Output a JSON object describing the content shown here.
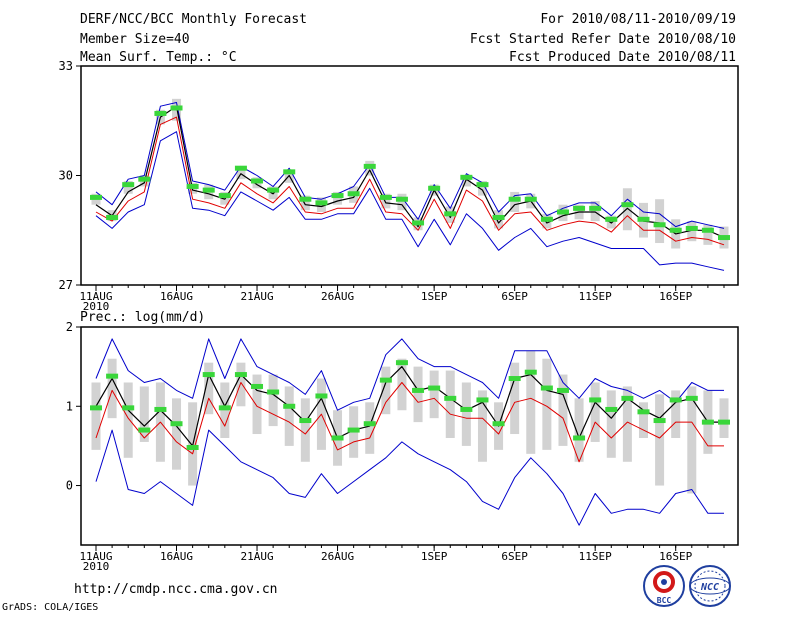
{
  "header": {
    "title": "DERF/NCC/BCC Monthly Forecast",
    "member_size": "Member Size=40",
    "variable": "Mean Surf. Temp.: °C",
    "period": "For 2010/08/11-2010/09/19",
    "started": "Fcst Started Refer Date 2010/08/10",
    "produced": "Fcst Produced Date 2010/08/11"
  },
  "footer": {
    "url": "http://cmdp.ncc.cma.gov.cn",
    "grads": "GrADS: COLA/IGES",
    "logo_left": "BCC",
    "logo_right": "NCC"
  },
  "colors": {
    "envelope": "#0000cc",
    "lower_band": "#e00000",
    "mean": "#000000",
    "median": "#39d63a",
    "box": "#d2d2d2"
  },
  "chart_data": [
    {
      "type": "box-whisker-line",
      "title": "Mean Surf. Temp.: °C",
      "ylim": [
        27,
        33
      ],
      "yticks": [
        27,
        30,
        33
      ],
      "xtick_labels": [
        "11AUG",
        "16AUG",
        "21AUG",
        "26AUG",
        "1SEP",
        "6SEP",
        "11SEP",
        "16SEP"
      ],
      "xtick_days": [
        0,
        5,
        10,
        15,
        21,
        26,
        31,
        36
      ],
      "year_label": "2010",
      "days": 40,
      "series": {
        "max": [
          29.55,
          29.2,
          29.9,
          30.0,
          31.9,
          32.0,
          29.85,
          29.75,
          29.6,
          30.25,
          30.0,
          29.7,
          30.2,
          29.4,
          29.35,
          29.5,
          29.7,
          30.3,
          29.4,
          29.4,
          28.8,
          29.75,
          29.1,
          30.05,
          29.8,
          29.0,
          29.45,
          29.5,
          28.9,
          29.1,
          29.25,
          29.25,
          28.9,
          29.35,
          29.0,
          28.95,
          28.6,
          28.75,
          28.65,
          28.55
        ],
        "mean": [
          29.2,
          28.9,
          29.55,
          29.8,
          31.6,
          31.9,
          29.6,
          29.5,
          29.35,
          30.05,
          29.75,
          29.5,
          30.0,
          29.2,
          29.15,
          29.3,
          29.4,
          30.15,
          29.25,
          29.2,
          28.6,
          29.6,
          28.85,
          29.9,
          29.6,
          28.7,
          29.2,
          29.3,
          28.7,
          28.9,
          29.0,
          29.0,
          28.7,
          29.1,
          28.75,
          28.7,
          28.4,
          28.5,
          28.5,
          28.3
        ],
        "lower": [
          29.0,
          28.75,
          29.3,
          29.55,
          31.4,
          31.6,
          29.35,
          29.25,
          29.1,
          29.8,
          29.5,
          29.25,
          29.7,
          29.0,
          28.95,
          29.1,
          29.1,
          29.9,
          29.0,
          28.95,
          28.5,
          29.35,
          28.55,
          29.6,
          29.3,
          28.5,
          28.95,
          29.0,
          28.5,
          28.65,
          28.75,
          28.7,
          28.45,
          28.9,
          28.5,
          28.5,
          28.2,
          28.3,
          28.25,
          28.1
        ],
        "min": [
          28.9,
          28.55,
          29.0,
          29.2,
          30.95,
          31.2,
          29.1,
          29.05,
          28.9,
          29.55,
          29.3,
          29.05,
          29.4,
          28.8,
          28.8,
          28.95,
          28.95,
          29.65,
          28.8,
          28.8,
          28.05,
          28.8,
          28.1,
          28.95,
          28.55,
          27.95,
          28.3,
          28.55,
          28.05,
          28.2,
          28.3,
          28.15,
          28.0,
          28.0,
          28.0,
          27.55,
          27.6,
          27.6,
          27.5,
          27.4
        ],
        "median": [
          29.4,
          28.85,
          29.75,
          29.9,
          31.7,
          31.85,
          29.7,
          29.6,
          29.45,
          30.2,
          29.85,
          29.6,
          30.1,
          29.35,
          29.25,
          29.45,
          29.5,
          30.25,
          29.4,
          29.35,
          28.7,
          29.65,
          28.95,
          29.95,
          29.75,
          28.85,
          29.35,
          29.35,
          28.8,
          29.0,
          29.1,
          29.1,
          28.8,
          29.2,
          28.8,
          28.65,
          28.5,
          28.55,
          28.5,
          28.3
        ],
        "box_high": [
          29.5,
          29.05,
          29.85,
          30.0,
          31.8,
          32.1,
          29.8,
          29.75,
          29.55,
          30.25,
          29.95,
          29.7,
          30.15,
          29.45,
          29.4,
          29.55,
          29.7,
          30.4,
          29.5,
          29.5,
          28.85,
          29.75,
          29.15,
          30.0,
          29.85,
          29.05,
          29.55,
          29.5,
          28.95,
          29.2,
          29.2,
          29.3,
          28.9,
          29.65,
          29.25,
          29.35,
          28.8,
          28.75,
          28.65,
          28.6
        ],
        "box_low": [
          29.2,
          28.75,
          29.5,
          29.7,
          31.4,
          31.5,
          29.5,
          29.35,
          29.2,
          29.9,
          29.65,
          29.35,
          29.8,
          29.05,
          29.0,
          29.2,
          29.25,
          30.0,
          29.1,
          29.05,
          28.5,
          29.45,
          28.7,
          29.7,
          29.45,
          28.55,
          29.0,
          29.1,
          28.55,
          28.75,
          28.8,
          28.75,
          28.55,
          28.5,
          28.3,
          28.15,
          28.0,
          28.2,
          28.1,
          28.0
        ]
      }
    },
    {
      "type": "box-whisker-line",
      "title": "Prec.: log(mm/d)",
      "ylim": [
        -0.75,
        2.0
      ],
      "yticks": [
        0,
        1,
        2
      ],
      "xtick_labels": [
        "11AUG",
        "16AUG",
        "21AUG",
        "26AUG",
        "1SEP",
        "6SEP",
        "11SEP",
        "16SEP"
      ],
      "xtick_days": [
        0,
        5,
        10,
        15,
        21,
        26,
        31,
        36
      ],
      "year_label": "2010",
      "days": 40,
      "series": {
        "max": [
          1.35,
          1.85,
          1.45,
          1.3,
          1.35,
          1.2,
          1.1,
          1.85,
          1.35,
          1.85,
          1.5,
          1.4,
          1.3,
          1.15,
          1.45,
          0.95,
          1.05,
          1.1,
          1.65,
          1.85,
          1.6,
          1.5,
          1.5,
          1.4,
          1.3,
          1.1,
          1.7,
          1.7,
          1.7,
          1.3,
          1.1,
          1.35,
          1.25,
          1.2,
          1.1,
          1.2,
          1.05,
          1.3,
          1.2,
          1.2
        ],
        "mean": [
          1.0,
          1.35,
          0.95,
          0.75,
          0.95,
          0.75,
          0.5,
          1.4,
          1.0,
          1.4,
          1.2,
          1.15,
          1.0,
          0.8,
          1.1,
          0.6,
          0.7,
          0.75,
          1.3,
          1.5,
          1.2,
          1.25,
          1.1,
          0.95,
          1.05,
          0.75,
          1.35,
          1.4,
          1.2,
          1.15,
          0.6,
          1.05,
          0.85,
          1.1,
          0.95,
          0.85,
          1.05,
          1.1,
          0.8,
          0.8
        ],
        "lower": [
          0.6,
          1.2,
          0.85,
          0.6,
          0.8,
          0.55,
          0.4,
          1.1,
          0.75,
          1.3,
          1.0,
          0.9,
          0.8,
          0.65,
          0.9,
          0.45,
          0.55,
          0.6,
          1.05,
          1.3,
          1.05,
          1.1,
          0.9,
          0.85,
          0.85,
          0.65,
          1.05,
          1.1,
          1.0,
          0.85,
          0.3,
          0.8,
          0.6,
          0.8,
          0.7,
          0.6,
          0.8,
          0.8,
          0.5,
          0.5
        ],
        "min": [
          0.05,
          0.7,
          -0.05,
          -0.1,
          0.05,
          -0.1,
          -0.25,
          0.7,
          0.5,
          0.3,
          0.2,
          0.1,
          -0.1,
          -0.15,
          0.15,
          -0.1,
          0.05,
          0.2,
          0.35,
          0.55,
          0.4,
          0.3,
          0.2,
          0.05,
          -0.2,
          -0.3,
          0.1,
          0.35,
          0.15,
          -0.1,
          -0.5,
          -0.1,
          -0.35,
          -0.3,
          -0.3,
          -0.35,
          -0.1,
          -0.05,
          -0.35,
          -0.35
        ],
        "median": [
          0.98,
          1.38,
          0.98,
          0.7,
          0.96,
          0.78,
          0.48,
          1.4,
          0.98,
          1.4,
          1.25,
          1.18,
          1.0,
          0.82,
          1.13,
          0.6,
          0.7,
          0.78,
          1.33,
          1.55,
          1.2,
          1.23,
          1.1,
          0.96,
          1.08,
          0.78,
          1.35,
          1.43,
          1.23,
          1.2,
          0.6,
          1.08,
          0.96,
          1.1,
          0.93,
          0.82,
          1.08,
          1.1,
          0.8,
          0.8
        ],
        "box_high": [
          1.3,
          1.6,
          1.3,
          1.25,
          1.3,
          1.1,
          1.05,
          1.55,
          1.3,
          1.55,
          1.4,
          1.4,
          1.25,
          1.1,
          1.35,
          0.95,
          1.0,
          1.05,
          1.5,
          1.6,
          1.5,
          1.45,
          1.45,
          1.3,
          1.2,
          1.05,
          1.55,
          1.7,
          1.6,
          1.4,
          1.1,
          1.3,
          1.2,
          1.25,
          1.05,
          1.15,
          1.2,
          1.25,
          1.2,
          1.1
        ],
        "box_low": [
          0.45,
          0.85,
          0.35,
          0.55,
          0.3,
          0.2,
          0.0,
          0.9,
          0.6,
          1.0,
          0.65,
          0.75,
          0.5,
          0.3,
          0.45,
          0.25,
          0.35,
          0.4,
          0.9,
          0.95,
          0.8,
          0.85,
          0.6,
          0.5,
          0.3,
          0.45,
          0.65,
          0.4,
          0.45,
          0.5,
          0.3,
          0.55,
          0.35,
          0.3,
          0.6,
          0.0,
          0.6,
          -0.1,
          0.4,
          0.6
        ]
      }
    }
  ]
}
